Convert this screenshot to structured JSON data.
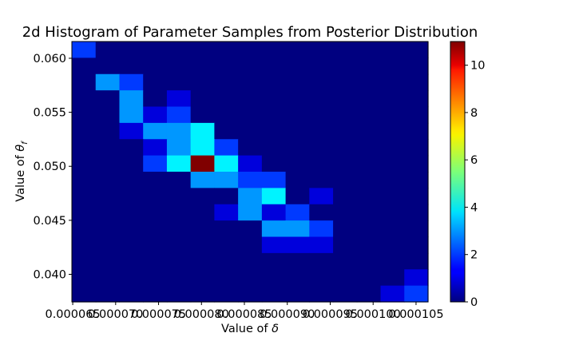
{
  "chart_data": {
    "type": "heatmap",
    "title": "2d Histogram of Parameter Samples from Posterior Distribution",
    "xlabel": "Value of δ",
    "ylabel": "Value of θf",
    "xlabel_parts": {
      "text": "Value of ",
      "symbol": "δ"
    },
    "ylabel_parts": {
      "text": "Value of ",
      "symbol": "θ",
      "subscript": "f"
    },
    "colormap": "jet",
    "colorbar": {
      "vmin": 0,
      "vmax": 11,
      "ticks": [
        0,
        2,
        4,
        6,
        8,
        10
      ],
      "tick_labels": [
        "0",
        "2",
        "4",
        "6",
        "8",
        "10"
      ]
    },
    "xlim": [
      6.49e-05,
      0.0001064
    ],
    "ylim": [
      0.03745,
      0.06155
    ],
    "x_bins": 15,
    "y_bins": 16,
    "x_ticks": [
      6.5e-05,
      7e-05,
      7.5e-05,
      8e-05,
      8.5e-05,
      9e-05,
      9.5e-05,
      0.0001,
      0.000105
    ],
    "x_tick_labels": [
      "0.000065",
      "0.000070",
      "0.000075",
      "0.000080",
      "0.000085",
      "0.000090",
      "0.000095",
      "0.000100",
      "0.000105"
    ],
    "y_ticks": [
      0.04,
      0.045,
      0.05,
      0.055,
      0.06
    ],
    "y_tick_labels": [
      "0.040",
      "0.045",
      "0.050",
      "0.055",
      "0.060"
    ],
    "counts_top_to_bottom": [
      [
        2,
        0,
        0,
        0,
        0,
        0,
        0,
        0,
        0,
        0,
        0,
        0,
        0,
        0,
        0
      ],
      [
        0,
        0,
        0,
        0,
        0,
        0,
        0,
        0,
        0,
        0,
        0,
        0,
        0,
        0,
        0
      ],
      [
        0,
        3,
        2,
        0,
        0,
        0,
        0,
        0,
        0,
        0,
        0,
        0,
        0,
        0,
        0
      ],
      [
        0,
        0,
        3,
        0,
        1,
        0,
        0,
        0,
        0,
        0,
        0,
        0,
        0,
        0,
        0
      ],
      [
        0,
        0,
        3,
        1,
        2,
        0,
        0,
        0,
        0,
        0,
        0,
        0,
        0,
        0,
        0
      ],
      [
        0,
        0,
        1,
        3,
        3,
        4,
        0,
        0,
        0,
        0,
        0,
        0,
        0,
        0,
        0
      ],
      [
        0,
        0,
        0,
        1,
        3,
        4,
        2,
        0,
        0,
        0,
        0,
        0,
        0,
        0,
        0
      ],
      [
        0,
        0,
        0,
        2,
        4,
        11,
        4,
        1,
        0,
        0,
        0,
        0,
        0,
        0,
        0
      ],
      [
        0,
        0,
        0,
        0,
        0,
        3,
        3,
        2,
        2,
        0,
        0,
        0,
        0,
        0,
        0
      ],
      [
        0,
        0,
        0,
        0,
        0,
        0,
        0,
        3,
        4,
        0,
        1,
        0,
        0,
        0,
        0
      ],
      [
        0,
        0,
        0,
        0,
        0,
        0,
        1,
        3,
        1,
        2,
        0,
        0,
        0,
        0,
        0
      ],
      [
        0,
        0,
        0,
        0,
        0,
        0,
        0,
        0,
        3,
        3,
        2,
        0,
        0,
        0,
        0
      ],
      [
        0,
        0,
        0,
        0,
        0,
        0,
        0,
        0,
        1,
        1,
        1,
        0,
        0,
        0,
        0
      ],
      [
        0,
        0,
        0,
        0,
        0,
        0,
        0,
        0,
        0,
        0,
        0,
        0,
        0,
        0,
        0
      ],
      [
        0,
        0,
        0,
        0,
        0,
        0,
        0,
        0,
        0,
        0,
        0,
        0,
        0,
        0,
        1
      ],
      [
        0,
        0,
        0,
        0,
        0,
        0,
        0,
        0,
        0,
        0,
        0,
        0,
        0,
        1,
        2
      ]
    ]
  }
}
